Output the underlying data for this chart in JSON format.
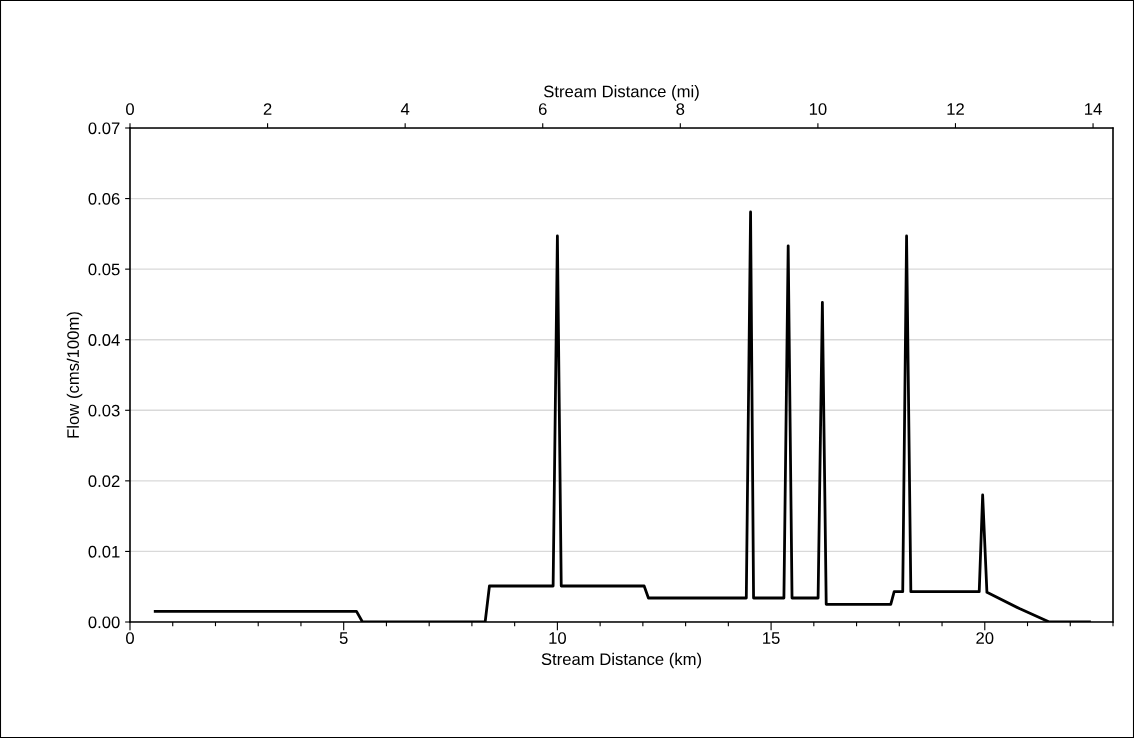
{
  "chart_data": {
    "type": "line",
    "xlabel": "Stream Distance (km)",
    "x2label": "Stream Distance (mi)",
    "ylabel": "Flow (cms/100m)",
    "xlim": [
      0,
      23
    ],
    "xticks": [
      0,
      {
        "value": 1,
        "label": null
      },
      {
        "value": 2,
        "label": null
      },
      {
        "value": 3,
        "label": null
      },
      {
        "value": 4,
        "label": null
      },
      5,
      {
        "value": 6,
        "label": null
      },
      {
        "value": 7,
        "label": null
      },
      {
        "value": 8,
        "label": null
      },
      {
        "value": 9,
        "label": null
      },
      10,
      {
        "value": 11,
        "label": null
      },
      {
        "value": 12,
        "label": null
      },
      {
        "value": 13,
        "label": null
      },
      {
        "value": 14,
        "label": null
      },
      15,
      {
        "value": 16,
        "label": null
      },
      {
        "value": 17,
        "label": null
      },
      {
        "value": 18,
        "label": null
      },
      {
        "value": 19,
        "label": null
      },
      20,
      {
        "value": 21,
        "label": null
      },
      {
        "value": 22,
        "label": null
      },
      {
        "value": 23,
        "label": null
      }
    ],
    "x2lim": [
      0,
      14.29
    ],
    "x2ticks": [
      0,
      2,
      4,
      6,
      8,
      10,
      12,
      14
    ],
    "ylim": [
      0,
      0.07
    ],
    "yticks": [
      {
        "value": 0,
        "label": "0.00"
      },
      {
        "value": 0.01,
        "label": "0.01"
      },
      {
        "value": 0.02,
        "label": "0.02"
      },
      {
        "value": 0.03,
        "label": "0.03"
      },
      {
        "value": 0.04,
        "label": "0.04"
      },
      {
        "value": 0.05,
        "label": "0.05"
      },
      {
        "value": 0.06,
        "label": "0.06"
      },
      {
        "value": 0.07,
        "label": "0.07"
      }
    ],
    "grid": "y",
    "legend": false,
    "marker": "none",
    "line_style": "solid",
    "series": [
      {
        "color": "#000000",
        "x": [
          0.59,
          5.3,
          5.44,
          8.31,
          8.41,
          9.9,
          10.0,
          10.09,
          12.03,
          12.13,
          14.42,
          14.52,
          14.59,
          15.3,
          15.4,
          15.49,
          16.1,
          16.2,
          16.29,
          17.8,
          17.88,
          18.08,
          18.17,
          18.27,
          19.87,
          19.95,
          20.05,
          20.81,
          21.51,
          22.45
        ],
        "values": [
          0.0015,
          0.0015,
          0,
          0,
          0.0051,
          0.0051,
          0.0547,
          0.0051,
          0.0051,
          0.0034,
          0.0034,
          0.0581,
          0.0034,
          0.0034,
          0.0533,
          0.0034,
          0.0034,
          0.0453,
          0.0025,
          0.0025,
          0.0043,
          0.0043,
          0.0547,
          0.0043,
          0.0043,
          0.018,
          0.0042,
          0.0019,
          0,
          0
        ]
      }
    ]
  }
}
